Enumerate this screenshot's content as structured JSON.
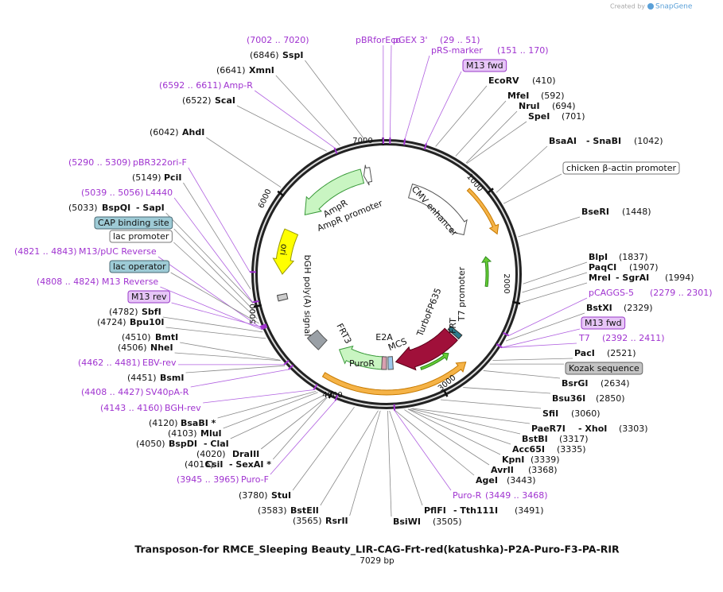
{
  "credit": {
    "prefix": "Created by",
    "brand": "SnapGene"
  },
  "title": "Transposon-for RMCE_Sleeping Beauty_LIR-CAG-Frt-red(katushka)-P2A-Puro-F3-PA-RIR",
  "length": "7029 bp",
  "ring_ticks": [
    "1000",
    "2000",
    "3000",
    "4000",
    "5000",
    "6000",
    "7000"
  ],
  "features": [
    "AmpR",
    "AmpR promoter",
    "CMV enhancer",
    "ori",
    "bGH poly(A) signal",
    "FRT3",
    "PuroR",
    "E2A",
    "MCS",
    "TurboFP635",
    "FRT",
    "T7 promoter"
  ],
  "labels": [
    {
      "name": "pBRforEco",
      "position": "(7002 .. 7020)"
    },
    {
      "name": "pGEX 3'",
      "position": "(29 .. 51)"
    },
    {
      "name": "pRS-marker",
      "position": "(151 .. 170)"
    },
    {
      "name": "M13 fwd"
    },
    {
      "name": "EcoRV",
      "position": "(410)"
    },
    {
      "name": "MfeI",
      "position": "(592)"
    },
    {
      "name": "NruI",
      "position": "(694)"
    },
    {
      "name": "SpeI",
      "position": "(701)"
    },
    {
      "name": "BsaAI",
      "name2": "- SnaBI",
      "position": "(1042)"
    },
    {
      "name": "chicken β-actin promoter"
    },
    {
      "name": "BseRI",
      "position": "(1448)"
    },
    {
      "name": "BlpI",
      "position": "(1837)"
    },
    {
      "name": "PaqCI",
      "position": "(1907)"
    },
    {
      "name": "MreI",
      "name2": "- SgrAI",
      "position": "(1994)"
    },
    {
      "name": "pCAGGS-5",
      "position": "(2279 .. 2301)"
    },
    {
      "name": "BstXI",
      "position": "(2329)"
    },
    {
      "name": "M13 fwd"
    },
    {
      "name": "T7",
      "position": "(2392 .. 2411)"
    },
    {
      "name": "PacI",
      "position": "(2521)"
    },
    {
      "name": "Kozak sequence"
    },
    {
      "name": "BsrGI",
      "position": "(2634)"
    },
    {
      "name": "Bsu36I",
      "position": "(2850)"
    },
    {
      "name": "SfiI",
      "position": "(3060)"
    },
    {
      "name": "PaeR7I",
      "name2": "- XhoI",
      "position": "(3303)"
    },
    {
      "name": "BstBI",
      "position": "(3317)"
    },
    {
      "name": "Acc65I",
      "position": "(3335)"
    },
    {
      "name": "KpnI",
      "position": "(3339)"
    },
    {
      "name": "AvrII",
      "position": "(3368)"
    },
    {
      "name": "AgeI",
      "position": "(3443)"
    },
    {
      "name": "Puro-R",
      "position": "(3449 .. 3468)"
    },
    {
      "name": "PflFI",
      "name2": "- Tth111I",
      "position": "(3491)"
    },
    {
      "name": "BsiWI",
      "position": "(3505)"
    },
    {
      "name": "BstEII",
      "position": "(3583)"
    },
    {
      "name": "RsrII",
      "position": "(3565)"
    },
    {
      "name": "StuI",
      "position": "(3780)"
    },
    {
      "name": "Puro-F",
      "position": "(3945 .. 3965)"
    },
    {
      "name": "CsiI",
      "name2": "- SexAI *",
      "position": "(4016)"
    },
    {
      "name": "DraIII",
      "position": "(4020)"
    },
    {
      "name": "BspDI",
      "name2": "- ClaI",
      "position": "(4050)"
    },
    {
      "name": "MluI",
      "position": "(4103)"
    },
    {
      "name": "BsaBI *",
      "position": "(4120)"
    },
    {
      "name": "BGH-rev",
      "position": "(4143 .. 4160)"
    },
    {
      "name": "SV40pA-R",
      "position": "(4408 .. 4427)"
    },
    {
      "name": "BsmI",
      "position": "(4451)"
    },
    {
      "name": "EBV-rev",
      "position": "(4462 .. 4481)"
    },
    {
      "name": "NheI",
      "position": "(4506)"
    },
    {
      "name": "BmtI",
      "position": "(4510)"
    },
    {
      "name": "Bpu10I",
      "position": "(4724)"
    },
    {
      "name": "SbfI",
      "position": "(4782)"
    },
    {
      "name": "M13 rev"
    },
    {
      "name": "M13 Reverse",
      "position": "(4808 .. 4824)"
    },
    {
      "name": "lac operator"
    },
    {
      "name": "M13/pUC Reverse",
      "position": "(4821 .. 4843)"
    },
    {
      "name": "lac promoter"
    },
    {
      "name": "CAP binding site"
    },
    {
      "name": "BspQI",
      "name2": "- SapI",
      "position": "(5033)"
    },
    {
      "name": "L4440",
      "position": "(5039 .. 5056)"
    },
    {
      "name": "PciI",
      "position": "(5149)"
    },
    {
      "name": "pBR322ori-F",
      "position": "(5290 .. 5309)"
    },
    {
      "name": "AhdI",
      "position": "(6042)"
    },
    {
      "name": "ScaI",
      "position": "(6522)"
    },
    {
      "name": "Amp-R",
      "position": "(6592 .. 6611)"
    },
    {
      "name": "XmnI",
      "position": "(6641)"
    },
    {
      "name": "SspI",
      "position": "(6846)"
    }
  ]
}
